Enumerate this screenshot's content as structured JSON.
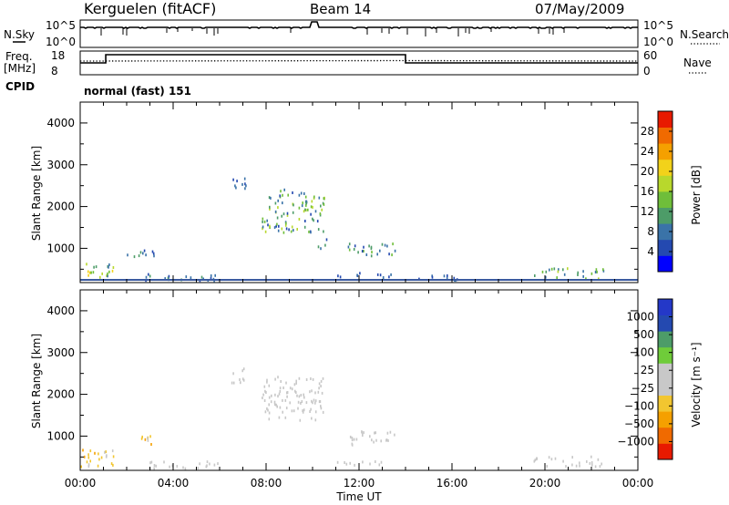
{
  "header": {
    "station": "Kerguelen (fitACF)",
    "beam": "Beam 14",
    "date": "07/May/2009"
  },
  "aux_panels": {
    "nsky_label": "N.Sky",
    "nsky_ticks": [
      "10^5",
      "10^0"
    ],
    "nsearch_label": "N.Search",
    "nsearch_ticks": [
      "10^5",
      "10^0"
    ],
    "freq_label_1": "Freq.",
    "freq_label_2": "[MHz]",
    "freq_ticks": [
      "18",
      "8"
    ],
    "nave_label": "Nave",
    "nave_ticks": [
      "60",
      "0"
    ],
    "cpid_label": "CPID",
    "cpid_value": "normal (fast) 151"
  },
  "chart_data": [
    {
      "type": "heatmap",
      "parameter": "Power",
      "ylabel": "Slant Range [km]",
      "ylim": [
        180,
        4500
      ],
      "yticks": [
        "4000",
        "3000",
        "2000",
        "1000"
      ],
      "colorbar_label": "Power [dB]",
      "colorbar_ticks": [
        "28",
        "24",
        "20",
        "16",
        "12",
        "8",
        "4"
      ],
      "colors": [
        "#0000ff",
        "#2449b0",
        "#3a73a8",
        "#4d9c68",
        "#6fbe3a",
        "#b8d82c",
        "#f2d21a",
        "#f5a000",
        "#f06a00",
        "#e81a00"
      ],
      "regions": [
        {
          "t": [
            0.0,
            1.4
          ],
          "r": [
            300,
            700
          ],
          "v": [
            6,
            22
          ]
        },
        {
          "t": [
            2.0,
            3.2
          ],
          "r": [
            800,
            1050
          ],
          "v": [
            4,
            12
          ]
        },
        {
          "t": [
            6.5,
            7.2
          ],
          "r": [
            2300,
            2700
          ],
          "v": [
            4,
            10
          ]
        },
        {
          "t": [
            7.8,
            10.5
          ],
          "r": [
            1400,
            2450
          ],
          "v": [
            4,
            18
          ]
        },
        {
          "t": [
            10.2,
            10.6
          ],
          "r": [
            1000,
            1300
          ],
          "v": [
            4,
            10
          ]
        },
        {
          "t": [
            11.5,
            13.6
          ],
          "r": [
            800,
            1150
          ],
          "v": [
            4,
            14
          ]
        },
        {
          "t": [
            11.0,
            13.4
          ],
          "r": [
            330,
            450
          ],
          "v": [
            4,
            8
          ]
        },
        {
          "t": [
            14.5,
            16.5
          ],
          "r": [
            250,
            400
          ],
          "v": [
            4,
            8
          ]
        },
        {
          "t": [
            19.5,
            22.5
          ],
          "r": [
            300,
            550
          ],
          "v": [
            4,
            16
          ]
        },
        {
          "t": [
            2.5,
            6.0
          ],
          "r": [
            250,
            420
          ],
          "v": [
            4,
            10
          ]
        }
      ]
    },
    {
      "type": "heatmap",
      "parameter": "Velocity",
      "ylabel": "Slant Range [km]",
      "ylim": [
        180,
        4500
      ],
      "yticks": [
        "4000",
        "3000",
        "2000",
        "1000"
      ],
      "xlabel": "Time UT",
      "xlim": [
        "00:00",
        "24:00"
      ],
      "xticks": [
        "00:00",
        "04:00",
        "08:00",
        "12:00",
        "16:00",
        "20:00",
        "00:00"
      ],
      "colorbar_label": "Velocity [m s⁻¹]",
      "colorbar_ticks": [
        "1000",
        "500",
        "100",
        "25",
        "−25",
        "−100",
        "−500",
        "−1000"
      ],
      "colors": [
        "#e81a00",
        "#f06a00",
        "#f5a000",
        "#f2c630",
        "#c8c8c8",
        "#c8c8c8",
        "#6fcc3a",
        "#4d9c68",
        "#2449b0",
        "#2438c8"
      ],
      "regions": [
        {
          "t": [
            0.0,
            1.5
          ],
          "r": [
            300,
            750
          ],
          "v": [
            -500,
            -100
          ]
        },
        {
          "t": [
            2.3,
            3.3
          ],
          "r": [
            800,
            1050
          ],
          "v": [
            -500,
            -100
          ]
        },
        {
          "t": [
            6.5,
            7.2
          ],
          "r": [
            2300,
            2700
          ],
          "v": [
            -25,
            25
          ]
        },
        {
          "t": [
            7.8,
            10.5
          ],
          "r": [
            1400,
            2450
          ],
          "v": [
            -25,
            25
          ]
        },
        {
          "t": [
            11.5,
            13.6
          ],
          "r": [
            800,
            1150
          ],
          "v": [
            25,
            100
          ]
        },
        {
          "t": [
            11.0,
            13.4
          ],
          "r": [
            330,
            450
          ],
          "v": [
            -100,
            25
          ]
        },
        {
          "t": [
            19.5,
            22.5
          ],
          "r": [
            300,
            550
          ],
          "v": [
            25,
            100
          ]
        },
        {
          "t": [
            2.5,
            6.0
          ],
          "r": [
            250,
            420
          ],
          "v": [
            -100,
            -25
          ]
        }
      ]
    }
  ]
}
